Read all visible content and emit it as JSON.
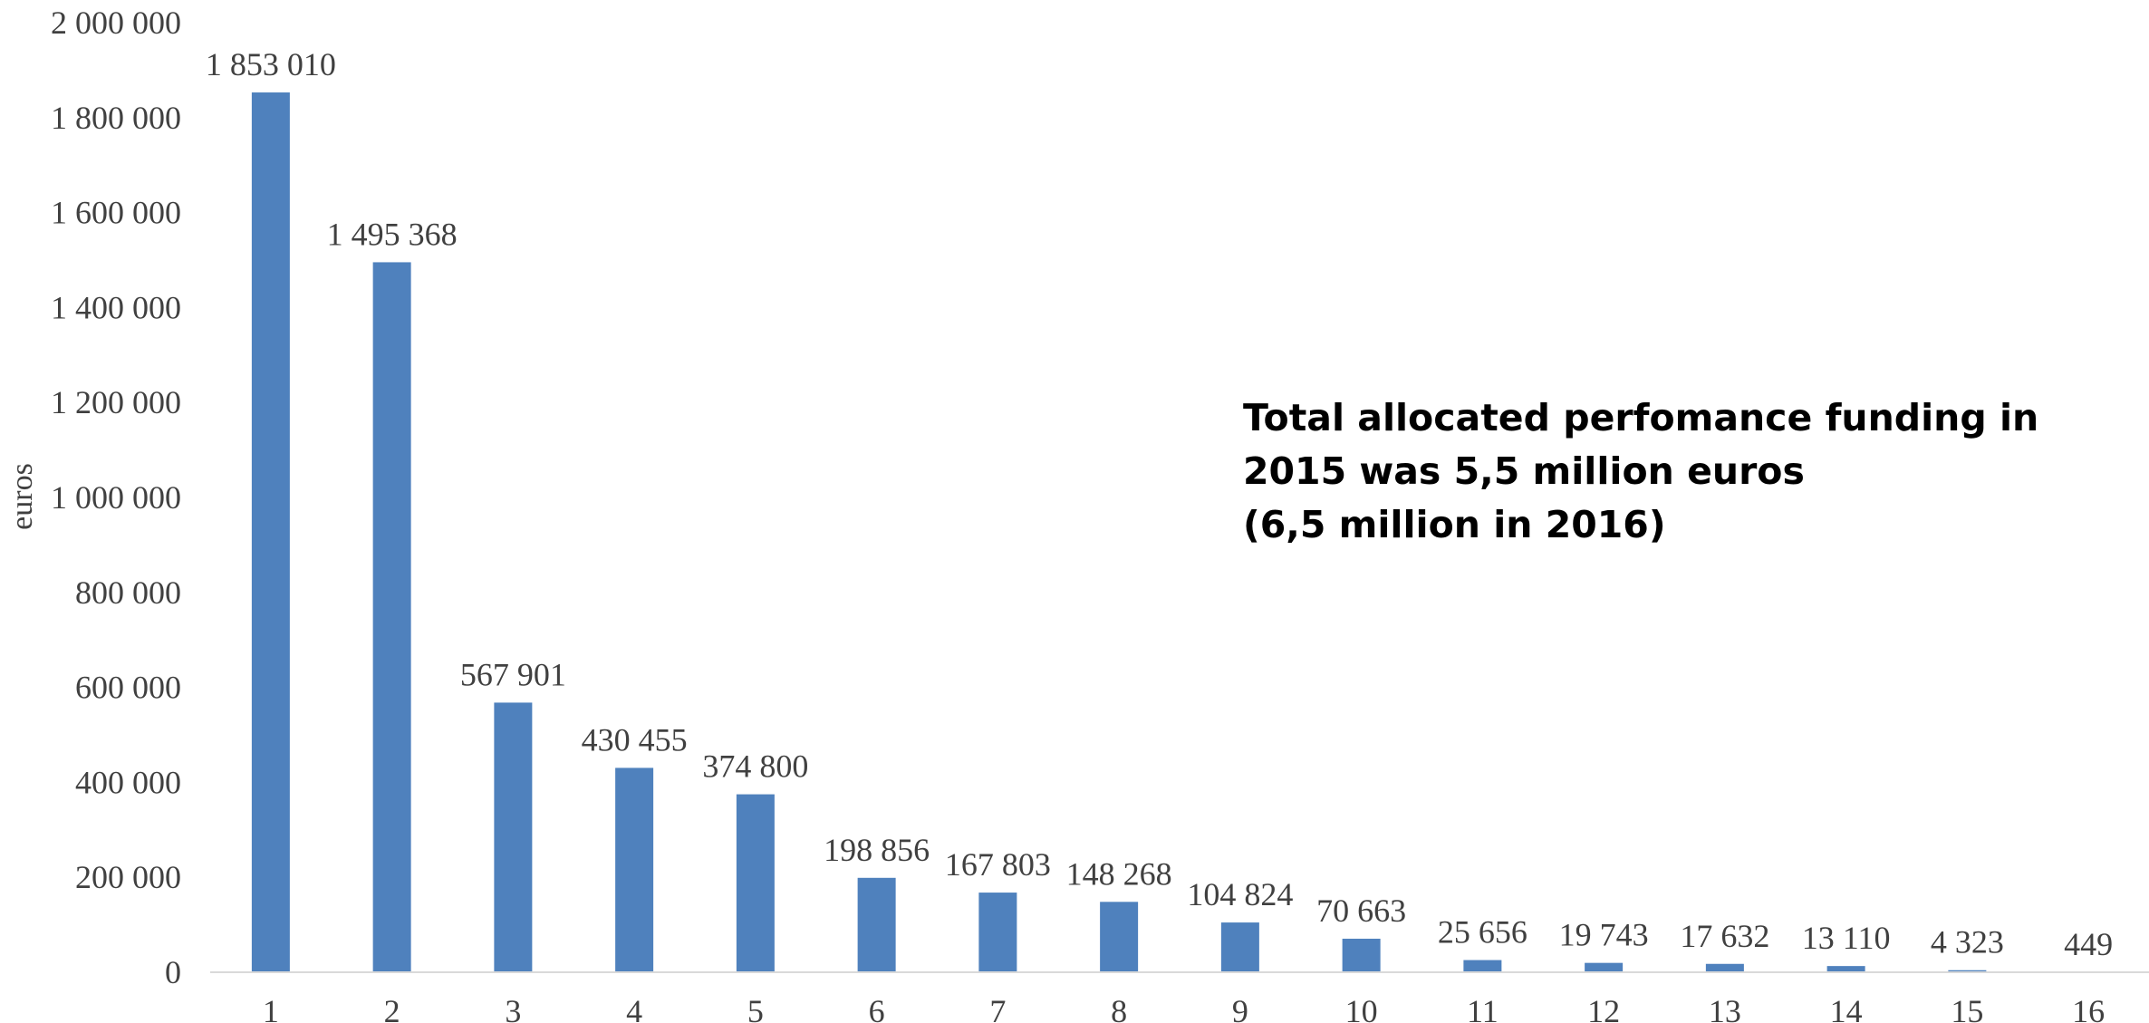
{
  "chart_data": {
    "type": "bar",
    "categories": [
      "1",
      "2",
      "3",
      "4",
      "5",
      "6",
      "7",
      "8",
      "9",
      "10",
      "11",
      "12",
      "13",
      "14",
      "15",
      "16"
    ],
    "values": [
      1853010,
      1495368,
      567901,
      430455,
      374800,
      198856,
      167803,
      148268,
      104824,
      70663,
      25656,
      19743,
      17632,
      13110,
      4323,
      449
    ],
    "value_labels": [
      "1 853 010",
      "1 495 368",
      "567 901",
      "430 455",
      "374 800",
      "198 856",
      "167 803",
      "148 268",
      "104 824",
      "70 663",
      "25 656",
      "19 743",
      "17 632",
      "13 110",
      "4 323",
      "449"
    ],
    "ylabel": "euros",
    "xlabel": "",
    "ylim": [
      0,
      2000000
    ],
    "yticks": [
      0,
      200000,
      400000,
      600000,
      800000,
      1000000,
      1200000,
      1400000,
      1600000,
      1800000,
      2000000
    ],
    "ytick_labels": [
      "0",
      "200 000",
      "400 000",
      "600 000",
      "800 000",
      "1 000 000",
      "1 200 000",
      "1 400 000",
      "1 600 000",
      "1 800 000",
      "2 000 000"
    ],
    "grid": false,
    "bar_color": "#4f81bd",
    "annotation": [
      "Total allocated perfomance funding in",
      "2015 was 5,5 million euros",
      "(6,5 million in 2016)"
    ]
  }
}
